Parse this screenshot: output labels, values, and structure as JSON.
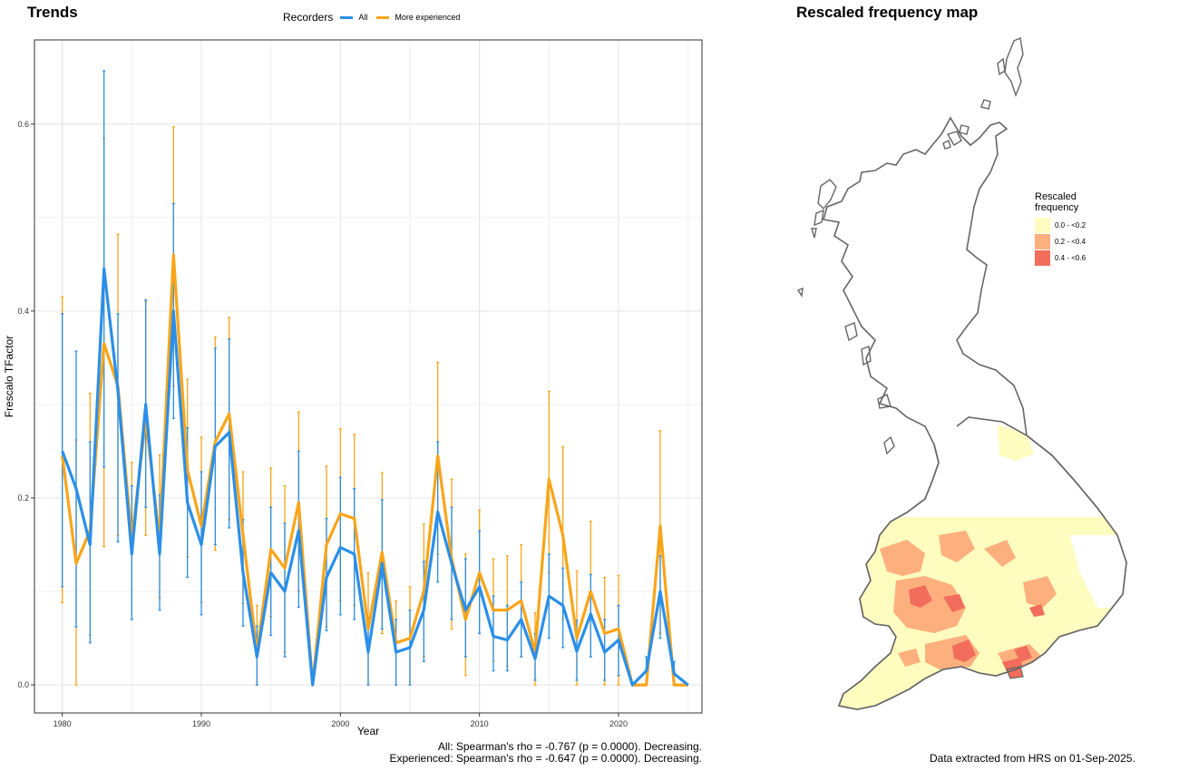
{
  "trends_title": "Trends",
  "map_title": "Rescaled frequency map",
  "legend": {
    "title": "Recorders",
    "items": [
      {
        "label": "All",
        "color": "#2b8fe8"
      },
      {
        "label": "More experienced",
        "color": "#f9a51a"
      }
    ]
  },
  "stats": {
    "all": "All: Spearman's rho = -0.767 (p = 0.0000). Decreasing.",
    "experienced": "Experienced: Spearman's rho = -0.647 (p = 0.0000). Decreasing."
  },
  "credit": "Data extracted from HRS on 01-Sep-2025.",
  "map_legend": {
    "title_line1": "Rescaled",
    "title_line2": "frequency",
    "items": [
      {
        "label": "0.0 - <0.2",
        "color": "#fffcc0"
      },
      {
        "label": "0.2 - <0.4",
        "color": "#fdb07e"
      },
      {
        "label": "0.4 - <0.6",
        "color": "#f36d5c"
      }
    ]
  },
  "chart_data": {
    "type": "line",
    "title": "Trends",
    "xlabel": "Year",
    "ylabel": "Frescalo TFactor",
    "xlim": [
      1978,
      2026
    ],
    "ylim": [
      -0.03,
      0.69
    ],
    "x_ticks": [
      1980,
      1990,
      2000,
      2010,
      2020
    ],
    "y_ticks": [
      0.0,
      0.2,
      0.4,
      0.6
    ],
    "y_tick_labels": [
      "0.0",
      "0.2",
      "0.4",
      "0.6"
    ],
    "grid": true,
    "legend_position": "top",
    "x": [
      1980,
      1981,
      1982,
      1983,
      1984,
      1985,
      1986,
      1987,
      1988,
      1989,
      1990,
      1991,
      1992,
      1993,
      1994,
      1995,
      1996,
      1997,
      1998,
      1999,
      2000,
      2001,
      2002,
      2003,
      2004,
      2005,
      2006,
      2007,
      2008,
      2009,
      2010,
      2011,
      2012,
      2013,
      2014,
      2015,
      2016,
      2017,
      2018,
      2019,
      2020,
      2021,
      2022,
      2023,
      2024,
      2025
    ],
    "series": [
      {
        "name": "All",
        "color": "#2b8fe8",
        "values": [
          0.25,
          0.21,
          0.15,
          0.445,
          0.315,
          0.14,
          0.3,
          0.14,
          0.4,
          0.195,
          0.15,
          0.255,
          0.27,
          0.12,
          0.03,
          0.12,
          0.1,
          0.165,
          0.0,
          0.115,
          0.147,
          0.14,
          0.035,
          0.13,
          0.035,
          0.04,
          0.08,
          0.185,
          0.13,
          0.08,
          0.105,
          0.052,
          0.048,
          0.07,
          0.028,
          0.095,
          0.085,
          0.036,
          0.076,
          0.035,
          0.048,
          0.0,
          0.015,
          0.1,
          0.012,
          0.0
        ],
        "lower": [
          0.105,
          0.062,
          0.045,
          0.233,
          0.153,
          0.07,
          0.19,
          0.08,
          0.285,
          0.115,
          0.075,
          0.15,
          0.168,
          0.063,
          0.0,
          0.053,
          0.03,
          0.083,
          0.0,
          0.058,
          0.075,
          0.07,
          0.0,
          0.06,
          0.0,
          0.0,
          0.025,
          0.11,
          0.07,
          0.03,
          0.055,
          0.015,
          0.015,
          0.03,
          0.005,
          0.05,
          0.04,
          0.005,
          0.03,
          0.005,
          0.01,
          0.0,
          0.0,
          0.05,
          0.0,
          0.0
        ],
        "upper": [
          0.397,
          0.357,
          0.26,
          0.657,
          0.397,
          0.213,
          0.412,
          0.203,
          0.515,
          0.275,
          0.228,
          0.36,
          0.37,
          0.177,
          0.063,
          0.19,
          0.173,
          0.25,
          0.0,
          0.178,
          0.222,
          0.21,
          0.072,
          0.198,
          0.07,
          0.08,
          0.132,
          0.26,
          0.19,
          0.135,
          0.165,
          0.095,
          0.085,
          0.11,
          0.055,
          0.14,
          0.125,
          0.069,
          0.118,
          0.07,
          0.085,
          0.0,
          0.03,
          0.138,
          0.025,
          0.0
        ]
      },
      {
        "name": "More experienced",
        "color": "#f9a51a",
        "values": [
          0.245,
          0.13,
          0.165,
          0.365,
          0.32,
          0.155,
          0.285,
          0.155,
          0.46,
          0.23,
          0.17,
          0.26,
          0.29,
          0.16,
          0.035,
          0.145,
          0.125,
          0.195,
          0.0,
          0.15,
          0.183,
          0.178,
          0.06,
          0.142,
          0.045,
          0.05,
          0.1,
          0.245,
          0.135,
          0.07,
          0.12,
          0.08,
          0.08,
          0.09,
          0.035,
          0.22,
          0.16,
          0.05,
          0.1,
          0.055,
          0.06,
          0.0,
          0.0,
          0.17,
          0.0,
          0.0
        ],
        "lower": [
          0.088,
          0.0,
          0.053,
          0.148,
          0.16,
          0.07,
          0.16,
          0.093,
          0.32,
          0.137,
          0.088,
          0.144,
          0.177,
          0.087,
          0.0,
          0.073,
          0.035,
          0.1,
          0.0,
          0.062,
          0.09,
          0.085,
          0.0,
          0.055,
          0.0,
          0.0,
          0.03,
          0.14,
          0.06,
          0.01,
          0.055,
          0.025,
          0.02,
          0.03,
          0.0,
          0.12,
          0.07,
          0.0,
          0.03,
          0.0,
          0.0,
          0.0,
          0.0,
          0.055,
          0.0,
          0.0
        ],
        "upper": [
          0.415,
          0.262,
          0.312,
          0.585,
          0.482,
          0.238,
          0.41,
          0.246,
          0.597,
          0.327,
          0.265,
          0.372,
          0.393,
          0.228,
          0.085,
          0.232,
          0.213,
          0.292,
          0.0,
          0.234,
          0.274,
          0.268,
          0.12,
          0.227,
          0.09,
          0.105,
          0.172,
          0.345,
          0.22,
          0.14,
          0.187,
          0.135,
          0.138,
          0.15,
          0.077,
          0.314,
          0.255,
          0.122,
          0.175,
          0.115,
          0.117,
          0.0,
          0.0,
          0.272,
          0.0,
          0.0
        ]
      }
    ]
  }
}
